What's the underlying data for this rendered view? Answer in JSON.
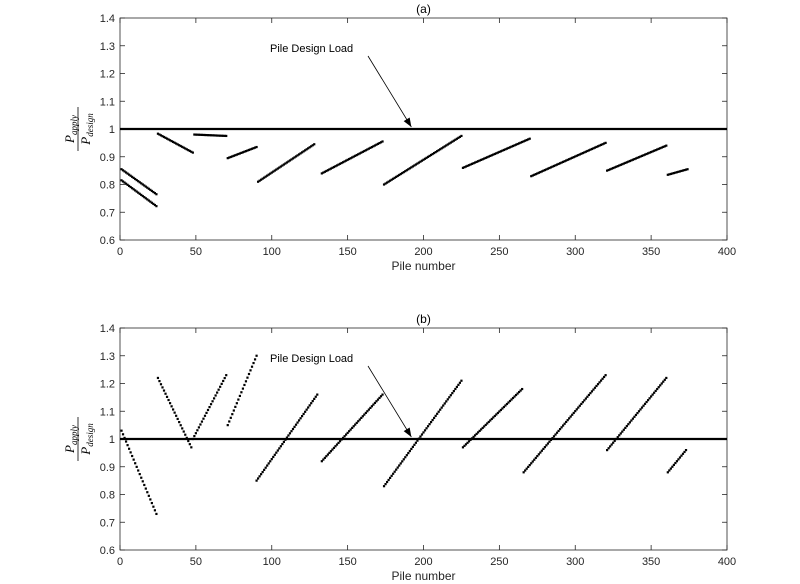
{
  "chart_data": [
    {
      "type": "scatter",
      "title": "(a)",
      "xlabel": "Pile number",
      "ylabel": {
        "numerator": "P",
        "numerator_sub": "apply",
        "denominator": "P",
        "denominator_sub": "design"
      },
      "xlim": [
        0,
        400
      ],
      "ylim": [
        0.6,
        1.4
      ],
      "xticks": [
        "0",
        "50",
        "100",
        "150",
        "200",
        "250",
        "300",
        "350",
        "400"
      ],
      "yticks": [
        "0.6",
        "0.7",
        "0.8",
        "0.9",
        "1",
        "1.1",
        "1.2",
        "1.3",
        "1.4"
      ],
      "grid": false,
      "reference_line": {
        "y": 1.0
      },
      "annotation": {
        "text": "Pile Design Load",
        "x": 192,
        "y": 1.0
      },
      "segments": [
        {
          "x": [
            1,
            24
          ],
          "y": [
            0.855,
            0.765
          ]
        },
        {
          "x": [
            1,
            24
          ],
          "y": [
            0.815,
            0.722
          ]
        },
        {
          "x": [
            25,
            48
          ],
          "y": [
            0.983,
            0.915
          ]
        },
        {
          "x": [
            49,
            70
          ],
          "y": [
            0.98,
            0.975
          ]
        },
        {
          "x": [
            71,
            90
          ],
          "y": [
            0.895,
            0.935
          ]
        },
        {
          "x": [
            91,
            128
          ],
          "y": [
            0.81,
            0.945
          ]
        },
        {
          "x": [
            133,
            173
          ],
          "y": [
            0.84,
            0.955
          ]
        },
        {
          "x": [
            174,
            225
          ],
          "y": [
            0.8,
            0.975
          ]
        },
        {
          "x": [
            226,
            270
          ],
          "y": [
            0.86,
            0.965
          ]
        },
        {
          "x": [
            271,
            320
          ],
          "y": [
            0.83,
            0.95
          ]
        },
        {
          "x": [
            321,
            360
          ],
          "y": [
            0.85,
            0.94
          ]
        },
        {
          "x": [
            361,
            374
          ],
          "y": [
            0.835,
            0.855
          ]
        }
      ]
    },
    {
      "type": "scatter",
      "title": "(b)",
      "xlabel": "Pile number",
      "ylabel": {
        "numerator": "P",
        "numerator_sub": "apply",
        "denominator": "P",
        "denominator_sub": "design"
      },
      "xlim": [
        0,
        400
      ],
      "ylim": [
        0.6,
        1.4
      ],
      "xticks": [
        "0",
        "50",
        "100",
        "150",
        "200",
        "250",
        "300",
        "350",
        "400"
      ],
      "yticks": [
        "0.6",
        "0.7",
        "0.8",
        "0.9",
        "1",
        "1.1",
        "1.2",
        "1.3",
        "1.4"
      ],
      "grid": false,
      "reference_line": {
        "y": 1.0
      },
      "annotation": {
        "text": "Pile Design Load",
        "x": 192,
        "y": 1.0
      },
      "segments": [
        {
          "x": [
            1,
            24
          ],
          "y": [
            1.03,
            0.73
          ]
        },
        {
          "x": [
            25,
            47
          ],
          "y": [
            1.22,
            0.97
          ]
        },
        {
          "x": [
            48,
            70
          ],
          "y": [
            1.0,
            1.23
          ]
        },
        {
          "x": [
            71,
            90
          ],
          "y": [
            1.05,
            1.3
          ]
        },
        {
          "x": [
            90,
            130
          ],
          "y": [
            0.85,
            1.16
          ]
        },
        {
          "x": [
            133,
            173
          ],
          "y": [
            0.92,
            1.16
          ]
        },
        {
          "x": [
            174,
            225
          ],
          "y": [
            0.83,
            1.21
          ]
        },
        {
          "x": [
            226,
            265
          ],
          "y": [
            0.97,
            1.18
          ]
        },
        {
          "x": [
            266,
            320
          ],
          "y": [
            0.88,
            1.23
          ]
        },
        {
          "x": [
            321,
            360
          ],
          "y": [
            0.96,
            1.22
          ]
        },
        {
          "x": [
            361,
            373
          ],
          "y": [
            0.88,
            0.96
          ]
        }
      ]
    }
  ]
}
